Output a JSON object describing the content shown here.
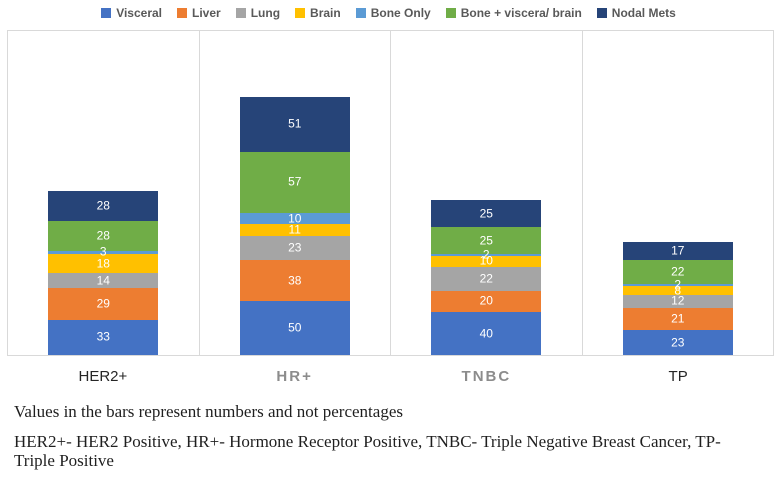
{
  "chart_data": {
    "type": "bar",
    "stacked": true,
    "categories": [
      "HER2+",
      "HR+",
      "TNBC",
      "TP"
    ],
    "series": [
      {
        "name": "Visceral",
        "color": "#4472C4",
        "values": [
          33,
          50,
          40,
          23
        ]
      },
      {
        "name": "Liver",
        "color": "#ED7D31",
        "values": [
          29,
          38,
          20,
          21
        ]
      },
      {
        "name": "Lung",
        "color": "#A5A5A5",
        "values": [
          14,
          23,
          22,
          12
        ]
      },
      {
        "name": "Brain",
        "color": "#FFC000",
        "values": [
          18,
          11,
          10,
          8
        ]
      },
      {
        "name": "Bone Only",
        "color": "#5B9BD5",
        "values": [
          3,
          10,
          2,
          2
        ]
      },
      {
        "name": "Bone + viscera/ brain",
        "color": "#70AD47",
        "values": [
          28,
          57,
          25,
          22
        ]
      },
      {
        "name": "Nodal Mets",
        "color": "#264478",
        "values": [
          28,
          51,
          25,
          17
        ]
      }
    ],
    "ylim": [
      0,
      300
    ],
    "legend_position": "top",
    "grid": "vertical category separators only, no axis tick labels",
    "category_styles": [
      {
        "color": "#262626",
        "gray_style": false
      },
      {
        "color": "#8c8c8c",
        "gray_style": true
      },
      {
        "color": "#8c8c8c",
        "gray_style": true
      },
      {
        "color": "#262626",
        "gray_style": false
      }
    ]
  },
  "notes": {
    "values_note": "Values in the bars represent numbers and not percentages",
    "abbrev_line1": "HER2+- HER2 Positive, HR+- Hormone Receptor Positive, TNBC- Triple Negative Breast Cancer, TP-",
    "abbrev_line2": "Triple Positive"
  },
  "colors": {
    "legend_text": "#595959",
    "plot_border": "#D9D9D9",
    "bar_value_text": "#FFFFFF"
  }
}
